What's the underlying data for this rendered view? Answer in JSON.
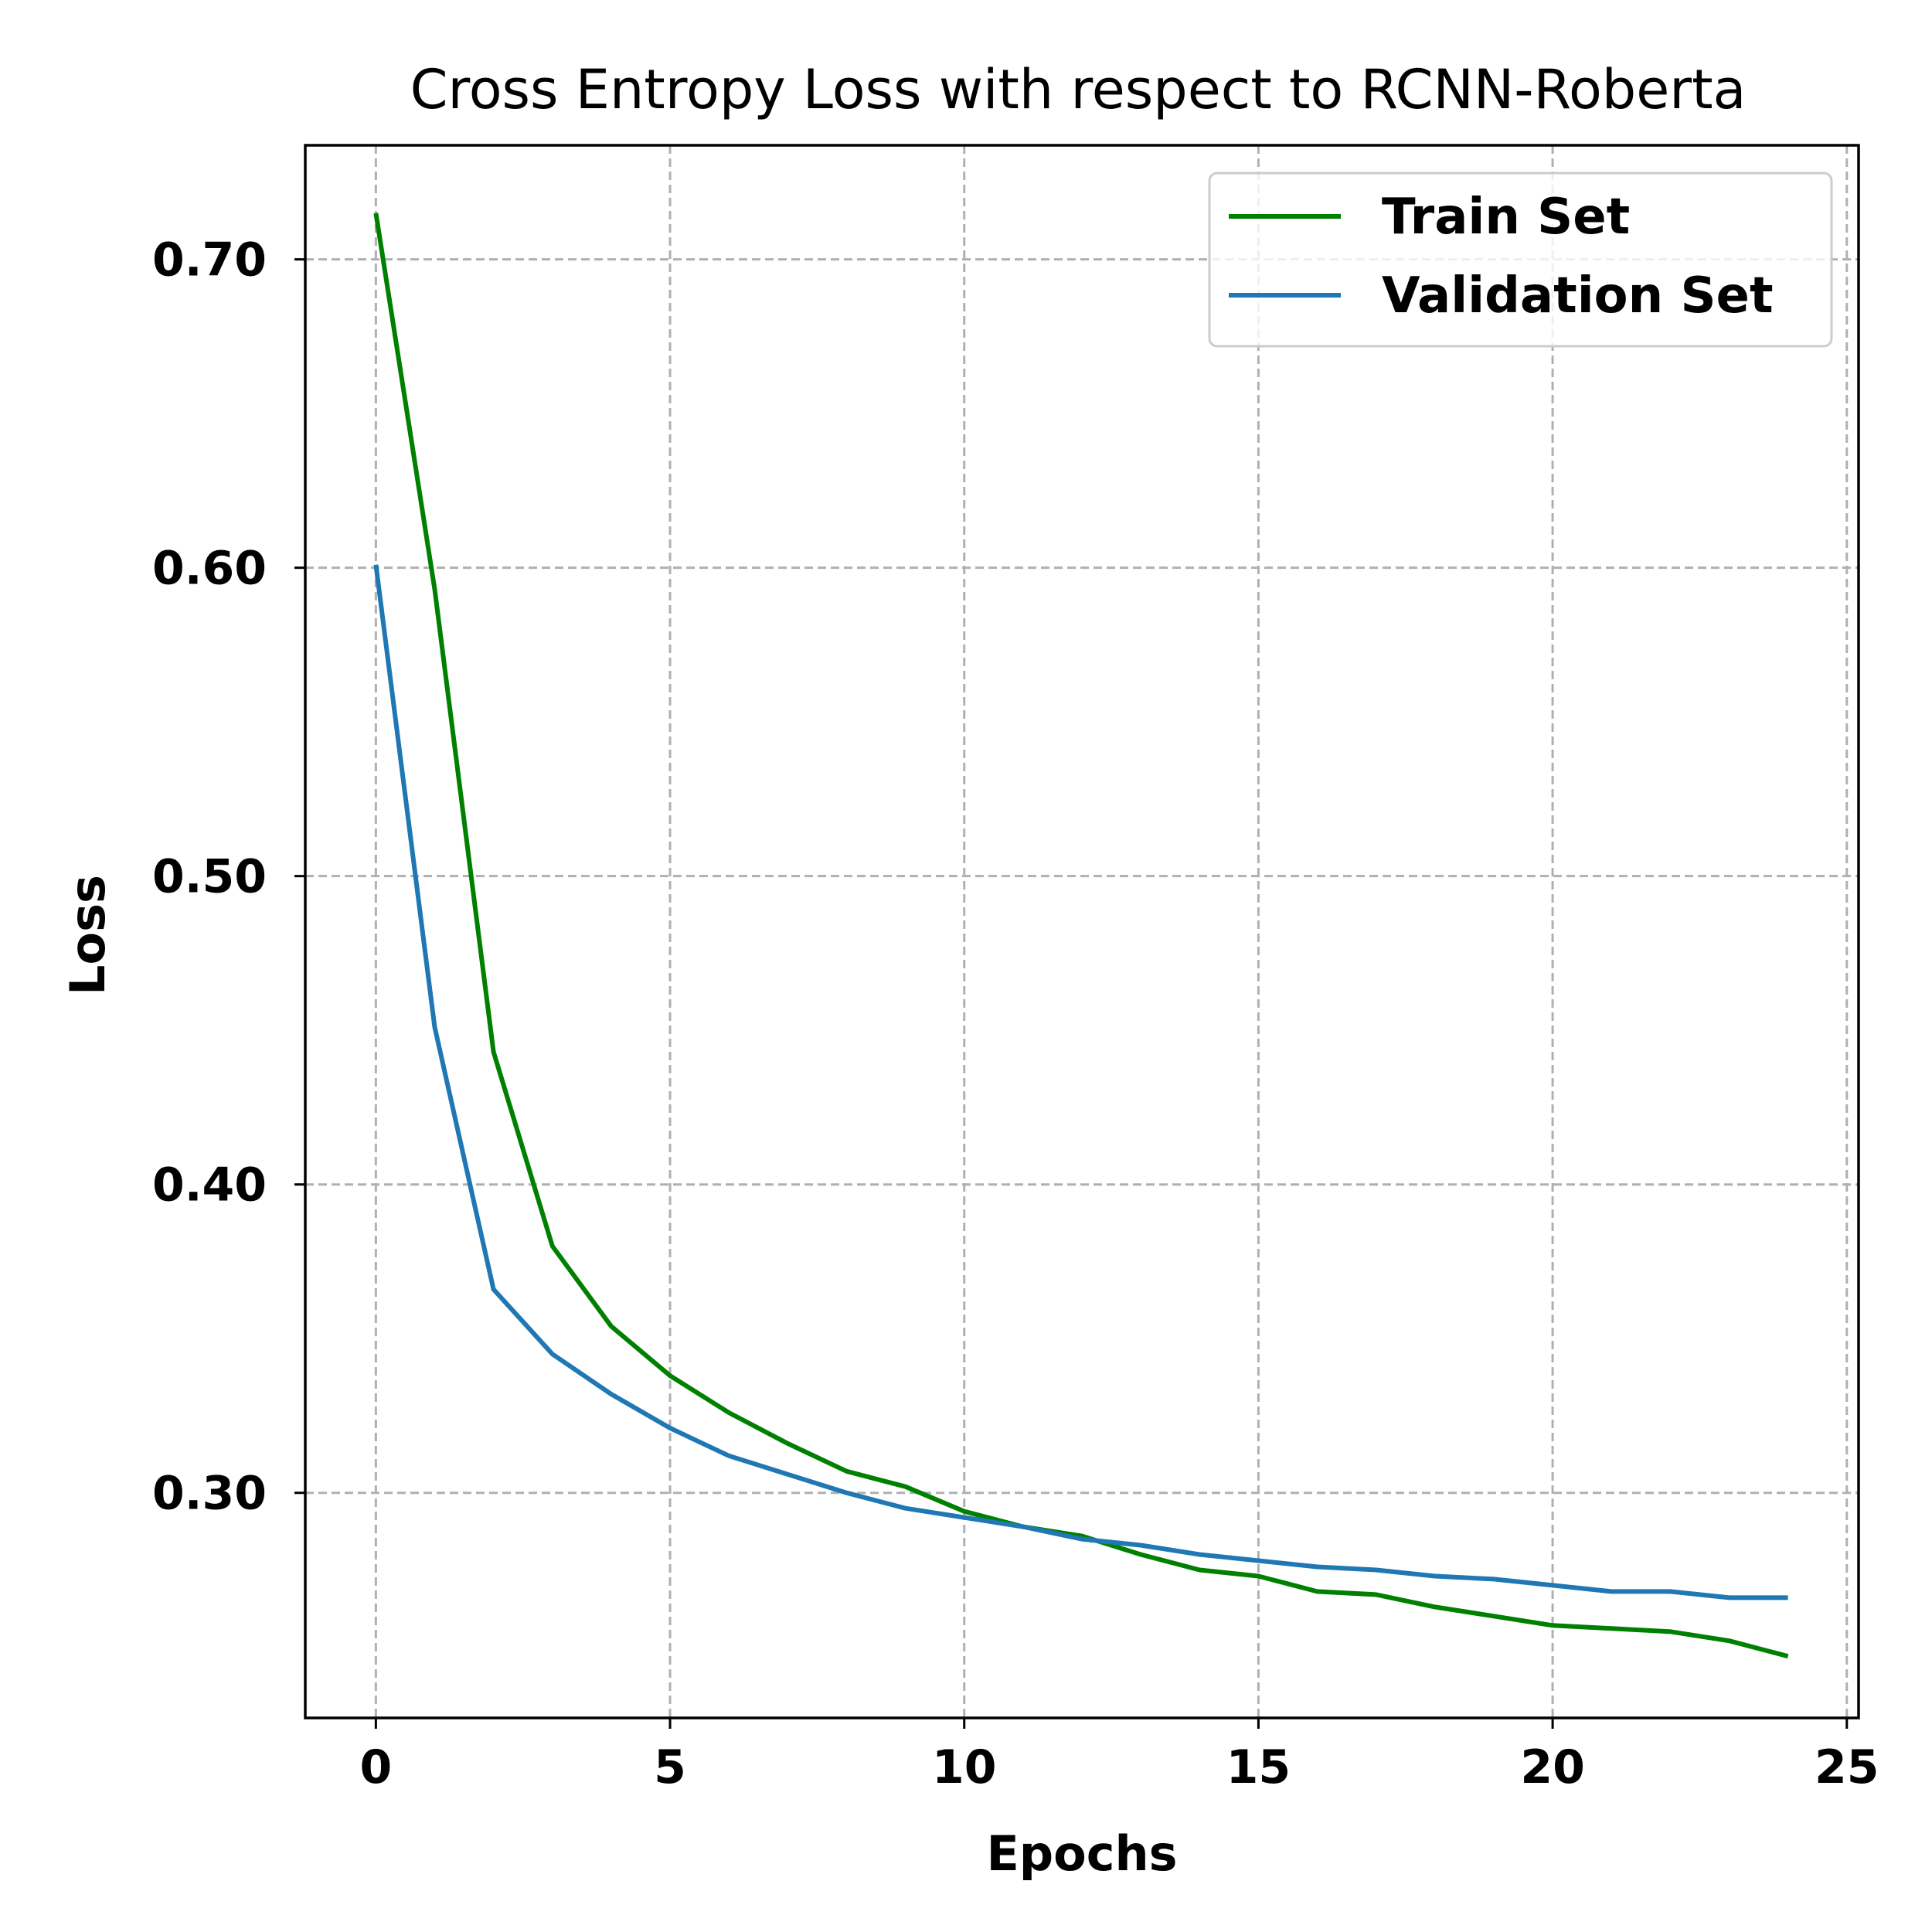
{
  "chart_data": {
    "type": "line",
    "title": "Cross Entropy Loss with respect to RCNN-Roberta",
    "xlabel": "Epochs",
    "ylabel": "Loss",
    "xlim": [
      -1.2,
      25.2
    ],
    "ylim": [
      0.227,
      0.737
    ],
    "xticks": [
      0,
      5,
      10,
      15,
      20,
      25
    ],
    "xtick_labels": [
      "0",
      "5",
      "10",
      "15",
      "20",
      "25"
    ],
    "yticks": [
      0.3,
      0.4,
      0.5,
      0.6,
      0.7
    ],
    "ytick_labels": [
      "0.30",
      "0.40",
      "0.50",
      "0.60",
      "0.70"
    ],
    "grid": true,
    "legend_position": "top-right",
    "x": [
      0,
      1,
      2,
      3,
      4,
      5,
      6,
      7,
      8,
      9,
      10,
      11,
      12,
      13,
      14,
      15,
      16,
      17,
      18,
      19,
      20,
      21,
      22,
      23,
      24
    ],
    "series": [
      {
        "name": "Train Set",
        "color": "#008000",
        "values": [
          0.715,
          0.593,
          0.443,
          0.38,
          0.354,
          0.338,
          0.326,
          0.316,
          0.307,
          0.302,
          0.294,
          0.289,
          0.286,
          0.28,
          0.275,
          0.273,
          0.268,
          0.267,
          0.263,
          0.26,
          0.257,
          0.256,
          0.255,
          0.252,
          0.247
        ]
      },
      {
        "name": "Validation Set",
        "color": "#1f77b4",
        "values": [
          0.601,
          0.451,
          0.366,
          0.345,
          0.332,
          0.321,
          0.312,
          0.306,
          0.3,
          0.295,
          0.292,
          0.289,
          0.285,
          0.283,
          0.28,
          0.278,
          0.276,
          0.275,
          0.273,
          0.272,
          0.27,
          0.268,
          0.268,
          0.266,
          0.266
        ]
      }
    ]
  }
}
